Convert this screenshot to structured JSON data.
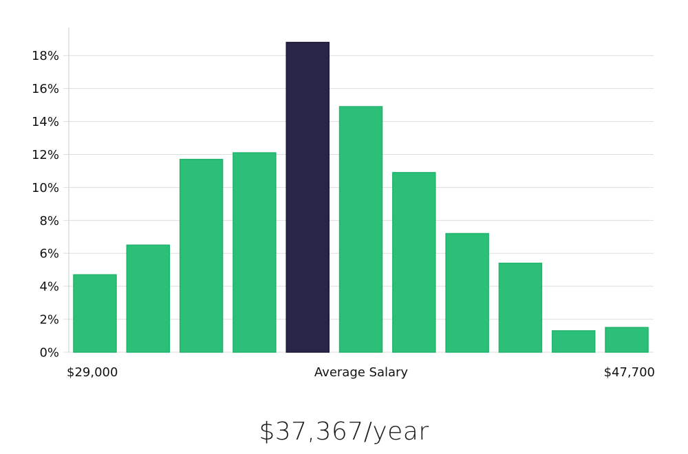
{
  "chart_data": {
    "type": "bar",
    "y_unit": "%",
    "y_tick_labels": [
      "0%",
      "2%",
      "4%",
      "6%",
      "8%",
      "10%",
      "12%",
      "14%",
      "16%",
      "18%"
    ],
    "ylim": [
      0,
      19.7
    ],
    "values": [
      4.7,
      6.5,
      11.7,
      12.1,
      18.8,
      14.9,
      10.9,
      7.2,
      5.4,
      1.3,
      1.5
    ],
    "highlight_index": 4,
    "x_labels": {
      "left": "$29,000",
      "center": "Average Salary",
      "right": "$47,700"
    },
    "grid": true,
    "colors": {
      "bar": "#2bbf78",
      "bar_edge": "#22b36c",
      "highlight": "#282548",
      "highlight_edge": "#1b1838",
      "grid": "#dddddd",
      "axis": "#cccccc"
    }
  },
  "summary": {
    "average_salary": "$37,367/year"
  }
}
